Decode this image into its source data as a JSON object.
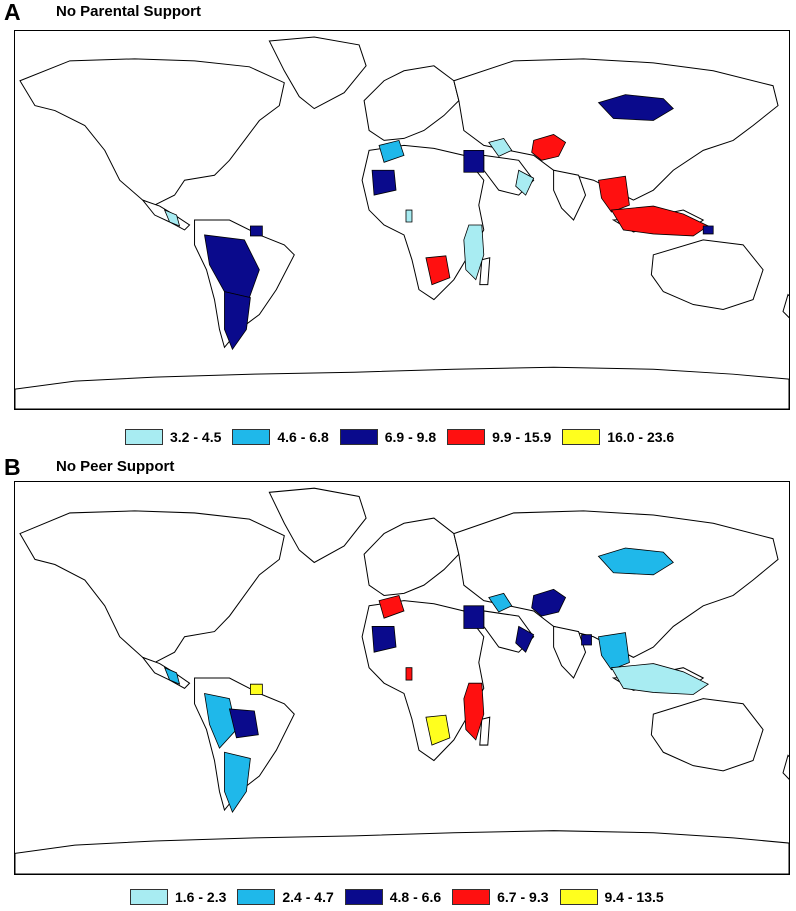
{
  "panels": [
    {
      "letter": "A",
      "title": "No Parental Support",
      "legend": [
        {
          "label": "3.2 - 4.5",
          "color": "#a8ecf2"
        },
        {
          "label": "4.6 - 6.8",
          "color": "#1fb8ea"
        },
        {
          "label": "6.9 - 9.8",
          "color": "#0a0a8c"
        },
        {
          "label": "9.9 - 15.9",
          "color": "#ff1010"
        },
        {
          "label": "16.0 - 23.6",
          "color": "#ffff1e"
        }
      ],
      "regions": [
        {
          "name": "Mongolia",
          "class": 2
        },
        {
          "name": "Afghanistan",
          "class": 3
        },
        {
          "name": "Egypt",
          "class": 2
        },
        {
          "name": "Mauritania",
          "class": 2
        },
        {
          "name": "Morocco",
          "class": 1
        },
        {
          "name": "Jordan/Israel area",
          "class": 0
        },
        {
          "name": "Oman/UAE",
          "class": 0
        },
        {
          "name": "Tanzania/Malawi/Mozambique",
          "class": 0
        },
        {
          "name": "Namibia",
          "class": 3
        },
        {
          "name": "Andean South America",
          "class": 2
        },
        {
          "name": "Argentina/Chile",
          "class": 2
        },
        {
          "name": "Guyana/Suriname",
          "class": 2
        },
        {
          "name": "Central America",
          "class": 0
        },
        {
          "name": "Ghana",
          "class": 0
        },
        {
          "name": "Southeast Asia mainland",
          "class": 3
        },
        {
          "name": "Indonesia/Philippines",
          "class": 3
        },
        {
          "name": "East Timor",
          "class": 2
        }
      ]
    },
    {
      "letter": "B",
      "title": "No Peer Support",
      "legend": [
        {
          "label": "1.6 - 2.3",
          "color": "#a8ecf2"
        },
        {
          "label": "2.4 - 4.7",
          "color": "#1fb8ea"
        },
        {
          "label": "4.8 - 6.6",
          "color": "#0a0a8c"
        },
        {
          "label": "6.7 - 9.3",
          "color": "#ff1010"
        },
        {
          "label": "9.4 - 13.5",
          "color": "#ffff1e"
        }
      ],
      "regions": [
        {
          "name": "Mongolia",
          "class": 1
        },
        {
          "name": "Afghanistan",
          "class": 2
        },
        {
          "name": "Egypt",
          "class": 2
        },
        {
          "name": "Mauritania",
          "class": 2
        },
        {
          "name": "Morocco",
          "class": 3
        },
        {
          "name": "Jordan/Israel area",
          "class": 1
        },
        {
          "name": "Oman/UAE",
          "class": 2
        },
        {
          "name": "Tanzania/Malawi/Mozambique",
          "class": 3
        },
        {
          "name": "Namibia",
          "class": 4
        },
        {
          "name": "Peru/Andean",
          "class": 1
        },
        {
          "name": "Bolivia",
          "class": 2
        },
        {
          "name": "Argentina/Chile",
          "class": 1
        },
        {
          "name": "Guyana/Suriname",
          "class": 4
        },
        {
          "name": "Central America",
          "class": 1
        },
        {
          "name": "Ghana",
          "class": 3
        },
        {
          "name": "Bangladesh",
          "class": 2
        },
        {
          "name": "Southeast Asia mainland",
          "class": 1
        },
        {
          "name": "Indonesia/Philippines",
          "class": 0
        }
      ]
    }
  ]
}
